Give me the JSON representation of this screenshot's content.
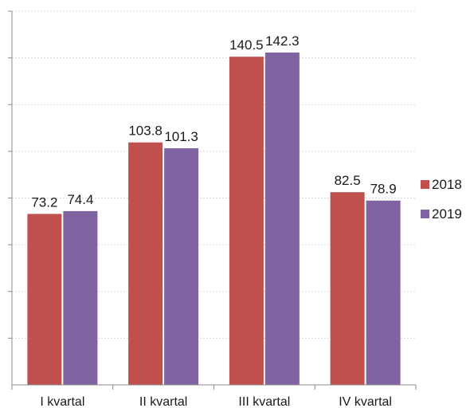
{
  "chart_data": {
    "type": "bar",
    "categories": [
      "I  kvartal",
      "II kvartal",
      "III  kvartal",
      "IV kvartal"
    ],
    "series": [
      {
        "name": "2018",
        "values": [
          73.2,
          103.8,
          140.5,
          82.5
        ],
        "color": "#c0504d"
      },
      {
        "name": "2019",
        "values": [
          74.4,
          101.3,
          142.3,
          78.9
        ],
        "color": "#8064a2"
      }
    ],
    "title": "",
    "xlabel": "",
    "ylabel": "",
    "ylim": [
      0,
      160
    ],
    "grid": true,
    "legend": "right"
  }
}
